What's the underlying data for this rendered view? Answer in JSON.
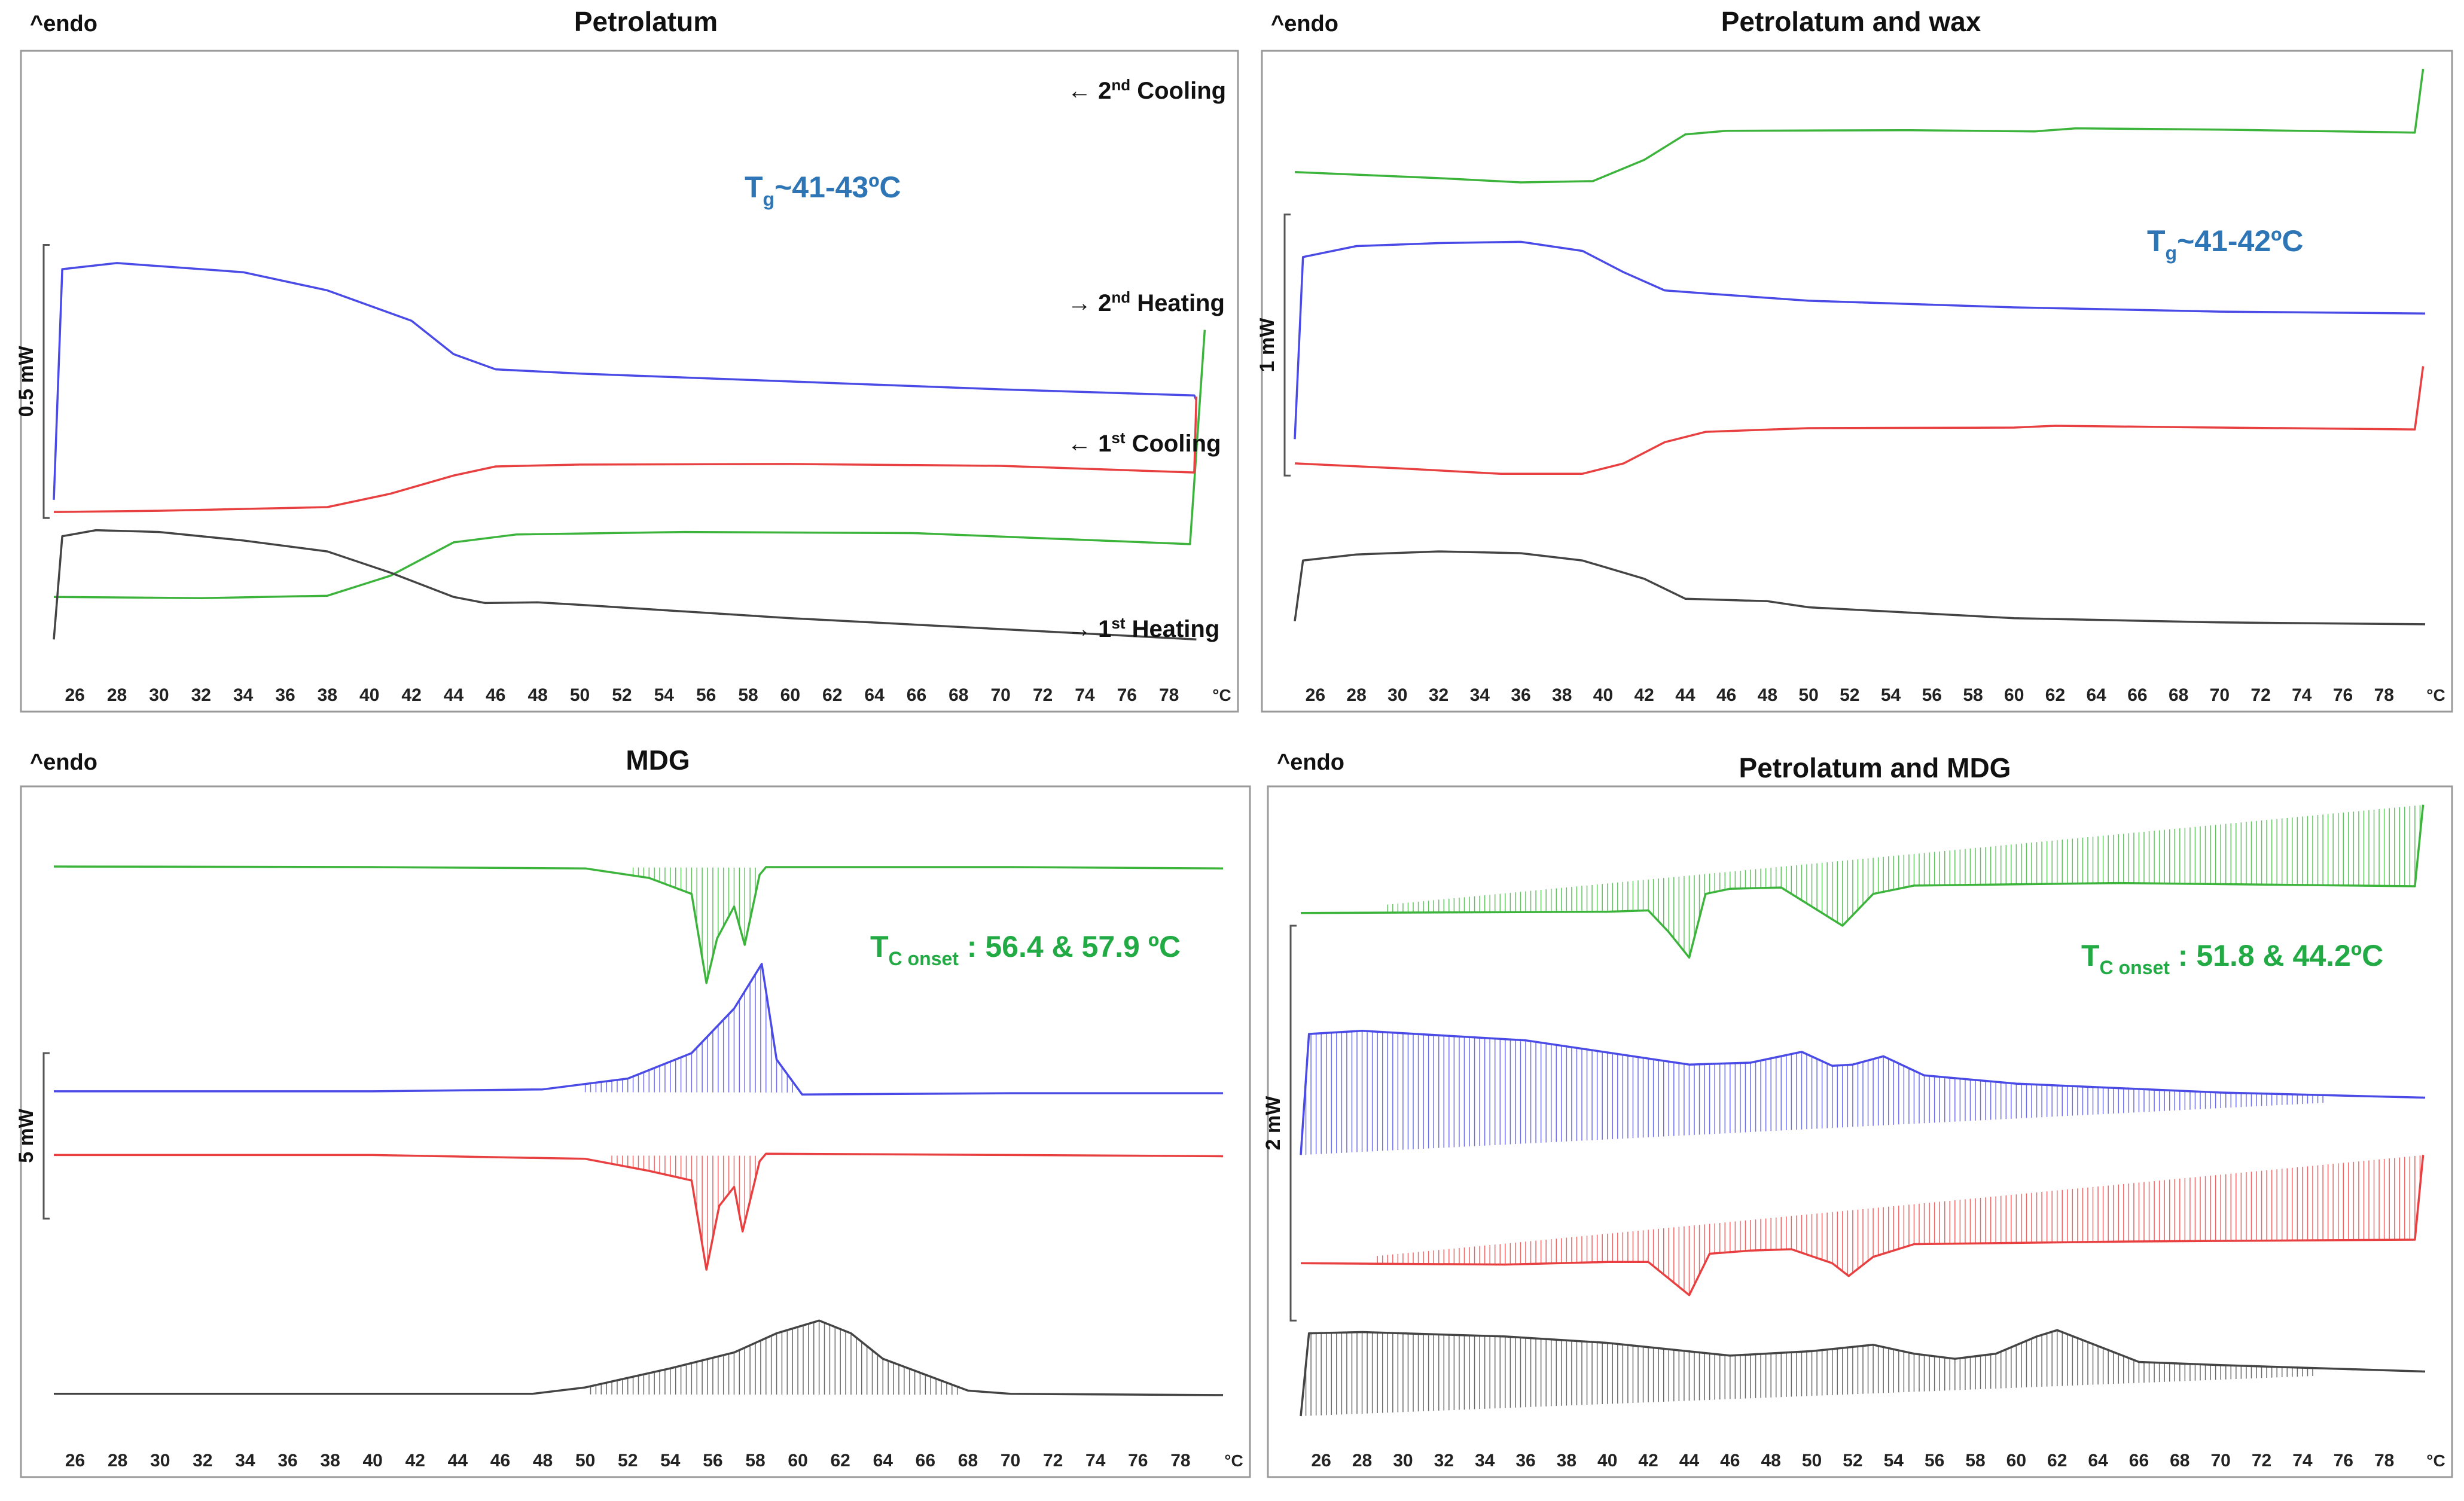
{
  "endo_label": "^endo",
  "unit_label": "°C",
  "chart_data": [
    {
      "type": "line",
      "title": "Petrolatum",
      "scale_label": "0.5 mW",
      "x_ticks": [
        26,
        28,
        30,
        32,
        34,
        36,
        38,
        40,
        42,
        44,
        46,
        48,
        50,
        52,
        54,
        56,
        58,
        60,
        62,
        64,
        66,
        68,
        70,
        72,
        74,
        76,
        78
      ],
      "xlim": [
        25,
        80
      ],
      "annotation": {
        "main": "T",
        "sub": "g",
        "rest": "~41-43ºC",
        "color": "#2e75b6"
      },
      "series": [
        {
          "name": "2nd Cooling",
          "color": "#3cb43c",
          "label": {
            "arrow": "←",
            "text": "2",
            "sup": "nd",
            "rest": " Cooling"
          },
          "points": [
            [
              25,
              0.88
            ],
            [
              32,
              0.882
            ],
            [
              38,
              0.878
            ],
            [
              41,
              0.845
            ],
            [
              44,
              0.79
            ],
            [
              47,
              0.777
            ],
            [
              55,
              0.773
            ],
            [
              66,
              0.775
            ],
            [
              79,
              0.793
            ],
            [
              79.7,
              0.44
            ]
          ]
        },
        {
          "name": "2nd Heating",
          "color": "#4a4ae6",
          "label": {
            "arrow": "→",
            "text": "2",
            "sup": "nd",
            "rest": " Heating"
          },
          "points": [
            [
              25,
              0.72
            ],
            [
              25.4,
              0.34
            ],
            [
              28,
              0.33
            ],
            [
              34,
              0.345
            ],
            [
              38,
              0.375
            ],
            [
              42,
              0.425
            ],
            [
              44,
              0.48
            ],
            [
              46,
              0.505
            ],
            [
              50,
              0.512
            ],
            [
              60,
              0.525
            ],
            [
              70,
              0.538
            ],
            [
              79.2,
              0.548
            ],
            [
              79.3,
              0.556
            ]
          ]
        },
        {
          "name": "1st Cooling",
          "color": "#e84040",
          "label": {
            "arrow": "←",
            "text": "1",
            "sup": "st",
            "rest": " Cooling"
          },
          "points": [
            [
              25,
              0.74
            ],
            [
              25.2,
              0.74
            ],
            [
              30,
              0.738
            ],
            [
              38,
              0.732
            ],
            [
              41,
              0.71
            ],
            [
              44,
              0.68
            ],
            [
              46,
              0.665
            ],
            [
              50,
              0.662
            ],
            [
              60,
              0.661
            ],
            [
              70,
              0.664
            ],
            [
              79.2,
              0.675
            ],
            [
              79.3,
              0.55
            ]
          ]
        },
        {
          "name": "1st Heating",
          "color": "#444444",
          "label": {
            "arrow": "→",
            "text": "1",
            "sup": "st",
            "rest": " Heating"
          },
          "points": [
            [
              25,
              0.95
            ],
            [
              25.4,
              0.78
            ],
            [
              27,
              0.77
            ],
            [
              30,
              0.773
            ],
            [
              34,
              0.787
            ],
            [
              38,
              0.805
            ],
            [
              41,
              0.84
            ],
            [
              44,
              0.88
            ],
            [
              45.5,
              0.89
            ],
            [
              48,
              0.889
            ],
            [
              50,
              0.893
            ],
            [
              60,
              0.915
            ],
            [
              70,
              0.933
            ],
            [
              79.3,
              0.95
            ]
          ]
        }
      ]
    },
    {
      "type": "line",
      "title": "Petrolatum and wax",
      "scale_label": "1 mW",
      "x_ticks": [
        26,
        28,
        30,
        32,
        34,
        36,
        38,
        40,
        42,
        44,
        46,
        48,
        50,
        52,
        54,
        56,
        58,
        60,
        62,
        64,
        66,
        68,
        70,
        72,
        74,
        76,
        78
      ],
      "xlim": [
        25,
        80
      ],
      "annotation": {
        "main": "T",
        "sub": "g",
        "rest": "~41-42ºC",
        "color": "#2e75b6"
      },
      "series": [
        {
          "name": "2nd Cooling",
          "color": "#3cb43c",
          "points": [
            [
              25,
              0.18
            ],
            [
              32,
              0.19
            ],
            [
              36,
              0.197
            ],
            [
              39.5,
              0.195
            ],
            [
              42,
              0.16
            ],
            [
              44,
              0.118
            ],
            [
              46,
              0.112
            ],
            [
              55,
              0.111
            ],
            [
              61,
              0.113
            ],
            [
              63,
              0.108
            ],
            [
              70,
              0.11
            ],
            [
              79.5,
              0.115
            ],
            [
              79.9,
              0.01
            ]
          ]
        },
        {
          "name": "2nd Heating",
          "color": "#4a4ae6",
          "points": [
            [
              25,
              0.62
            ],
            [
              25.4,
              0.32
            ],
            [
              28,
              0.302
            ],
            [
              32,
              0.297
            ],
            [
              36,
              0.295
            ],
            [
              39,
              0.31
            ],
            [
              41,
              0.345
            ],
            [
              43,
              0.375
            ],
            [
              45,
              0.38
            ],
            [
              50,
              0.392
            ],
            [
              60,
              0.403
            ],
            [
              70,
              0.41
            ],
            [
              80,
              0.413
            ]
          ]
        },
        {
          "name": "1st Cooling",
          "color": "#e84040",
          "points": [
            [
              25,
              0.66
            ],
            [
              30,
              0.668
            ],
            [
              35,
              0.677
            ],
            [
              39,
              0.677
            ],
            [
              41,
              0.66
            ],
            [
              43,
              0.625
            ],
            [
              45,
              0.608
            ],
            [
              50,
              0.602
            ],
            [
              60,
              0.601
            ],
            [
              62,
              0.598
            ],
            [
              70,
              0.601
            ],
            [
              79.5,
              0.604
            ],
            [
              79.9,
              0.5
            ]
          ]
        },
        {
          "name": "1st Heating",
          "color": "#444444",
          "points": [
            [
              25,
              0.92
            ],
            [
              25.4,
              0.82
            ],
            [
              28,
              0.81
            ],
            [
              32,
              0.805
            ],
            [
              36,
              0.808
            ],
            [
              39,
              0.82
            ],
            [
              42,
              0.85
            ],
            [
              44,
              0.883
            ],
            [
              46,
              0.885
            ],
            [
              48,
              0.887
            ],
            [
              50,
              0.897
            ],
            [
              60,
              0.915
            ],
            [
              70,
              0.922
            ],
            [
              80,
              0.925
            ]
          ]
        }
      ]
    },
    {
      "type": "line",
      "title": "MDG",
      "scale_label": "5 mW",
      "x_ticks": [
        26,
        28,
        30,
        32,
        34,
        36,
        38,
        40,
        42,
        44,
        46,
        48,
        50,
        52,
        54,
        56,
        58,
        60,
        62,
        64,
        66,
        68,
        70,
        72,
        74,
        76,
        78
      ],
      "xlim": [
        25,
        80
      ],
      "annotation": {
        "main": "T",
        "sub": "C onset",
        "rest": " : 56.4 & 57.9 ºC",
        "color": "#22aa44"
      },
      "series": [
        {
          "name": "2nd Cooling",
          "color": "#3cb43c",
          "points": [
            [
              25,
              0.107
            ],
            [
              40,
              0.108
            ],
            [
              50,
              0.11
            ],
            [
              53,
              0.125
            ],
            [
              55,
              0.15
            ],
            [
              55.7,
              0.29
            ],
            [
              56.2,
              0.22
            ],
            [
              57,
              0.17
            ],
            [
              57.5,
              0.23
            ],
            [
              58.2,
              0.12
            ],
            [
              58.5,
              0.108
            ],
            [
              70,
              0.108
            ],
            [
              80,
              0.11
            ]
          ]
        },
        {
          "name": "2nd Heating",
          "color": "#4a4ae6",
          "points": [
            [
              25,
              0.46
            ],
            [
              40,
              0.46
            ],
            [
              48,
              0.457
            ],
            [
              52,
              0.44
            ],
            [
              55,
              0.4
            ],
            [
              57,
              0.33
            ],
            [
              58.3,
              0.26
            ],
            [
              59,
              0.41
            ],
            [
              60.2,
              0.465
            ],
            [
              70,
              0.463
            ],
            [
              80,
              0.463
            ]
          ]
        },
        {
          "name": "1st Cooling",
          "color": "#e84040",
          "points": [
            [
              25,
              0.56
            ],
            [
              40,
              0.56
            ],
            [
              50,
              0.566
            ],
            [
              53,
              0.585
            ],
            [
              55,
              0.6
            ],
            [
              55.7,
              0.74
            ],
            [
              56.3,
              0.64
            ],
            [
              57,
              0.61
            ],
            [
              57.4,
              0.68
            ],
            [
              58.2,
              0.57
            ],
            [
              58.5,
              0.558
            ],
            [
              70,
              0.56
            ],
            [
              80,
              0.562
            ]
          ]
        },
        {
          "name": "1st Heating",
          "color": "#444444",
          "points": [
            [
              25,
              0.935
            ],
            [
              40,
              0.935
            ],
            [
              47.5,
              0.935
            ],
            [
              50,
              0.925
            ],
            [
              54,
              0.895
            ],
            [
              57,
              0.87
            ],
            [
              59,
              0.84
            ],
            [
              61,
              0.82
            ],
            [
              62.5,
              0.84
            ],
            [
              64,
              0.88
            ],
            [
              66,
              0.905
            ],
            [
              68,
              0.93
            ],
            [
              70,
              0.935
            ],
            [
              80,
              0.937
            ]
          ]
        }
      ]
    },
    {
      "type": "line",
      "title": "Petrolatum and MDG",
      "scale_label": "2 mW",
      "x_ticks": [
        26,
        28,
        30,
        32,
        34,
        36,
        38,
        40,
        42,
        44,
        46,
        48,
        50,
        52,
        54,
        56,
        58,
        60,
        62,
        64,
        66,
        68,
        70,
        72,
        74,
        76,
        78
      ],
      "xlim": [
        25,
        80
      ],
      "annotation": {
        "main": "T",
        "sub": "C onset",
        "rest": " : 51.8 & 44.2ºC",
        "color": "#22aa44"
      },
      "series": [
        {
          "name": "2nd Cooling",
          "color": "#3cb43c",
          "points": [
            [
              25,
              0.18
            ],
            [
              40,
              0.178
            ],
            [
              42,
              0.176
            ],
            [
              43,
              0.21
            ],
            [
              44,
              0.25
            ],
            [
              44.8,
              0.15
            ],
            [
              46,
              0.142
            ],
            [
              48.5,
              0.14
            ],
            [
              50,
              0.17
            ],
            [
              51.5,
              0.2
            ],
            [
              53,
              0.15
            ],
            [
              55,
              0.137
            ],
            [
              65,
              0.133
            ],
            [
              79.5,
              0.138
            ],
            [
              79.9,
              0.01
            ]
          ]
        },
        {
          "name": "2nd Heating",
          "color": "#4a4ae6",
          "points": [
            [
              25,
              0.56
            ],
            [
              25.4,
              0.37
            ],
            [
              28,
              0.365
            ],
            [
              36,
              0.38
            ],
            [
              44,
              0.418
            ],
            [
              47,
              0.415
            ],
            [
              49.5,
              0.398
            ],
            [
              51,
              0.42
            ],
            [
              52,
              0.418
            ],
            [
              53.5,
              0.405
            ],
            [
              55.5,
              0.435
            ],
            [
              60,
              0.448
            ],
            [
              70,
              0.462
            ],
            [
              80,
              0.47
            ]
          ]
        },
        {
          "name": "1st Cooling",
          "color": "#e84040",
          "points": [
            [
              25,
              0.73
            ],
            [
              35,
              0.732
            ],
            [
              40,
              0.728
            ],
            [
              42,
              0.728
            ],
            [
              44,
              0.78
            ],
            [
              45,
              0.715
            ],
            [
              47,
              0.71
            ],
            [
              49,
              0.708
            ],
            [
              51,
              0.73
            ],
            [
              51.8,
              0.75
            ],
            [
              53,
              0.72
            ],
            [
              55,
              0.7
            ],
            [
              65,
              0.696
            ],
            [
              79.5,
              0.693
            ],
            [
              79.9,
              0.56
            ]
          ]
        },
        {
          "name": "1st Heating",
          "color": "#444444",
          "points": [
            [
              25,
              0.97
            ],
            [
              25.4,
              0.84
            ],
            [
              28,
              0.838
            ],
            [
              35,
              0.845
            ],
            [
              40,
              0.855
            ],
            [
              46,
              0.875
            ],
            [
              50,
              0.868
            ],
            [
              53,
              0.858
            ],
            [
              55,
              0.872
            ],
            [
              57,
              0.88
            ],
            [
              59,
              0.872
            ],
            [
              61,
              0.845
            ],
            [
              62,
              0.835
            ],
            [
              64,
              0.86
            ],
            [
              66,
              0.885
            ],
            [
              70,
              0.89
            ],
            [
              80,
              0.9
            ]
          ]
        }
      ]
    }
  ]
}
